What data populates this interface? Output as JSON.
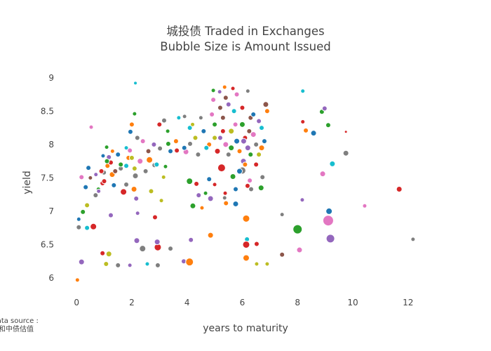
{
  "chart_data": {
    "type": "scatter",
    "title_line1": "城投债 Traded in Exchanges",
    "title_line2": "Bubble Size is Amount Issued",
    "xlabel": "years to maturity",
    "ylabel": "yield",
    "xlim": [
      -0.74,
      13.2
    ],
    "ylim": [
      5.6,
      9.25
    ],
    "xticks": [
      "0",
      "2",
      "4",
      "6",
      "8",
      "10",
      "12"
    ],
    "xtick_values": [
      0,
      2,
      4,
      6,
      8,
      10,
      12
    ],
    "yticks": [
      "6",
      "6.5",
      "7",
      "7.5",
      "8",
      "8.5",
      "9"
    ],
    "ytick_values": [
      6,
      6.5,
      7,
      7.5,
      8,
      8.5,
      9
    ],
    "grid": false,
    "source_line1": "Data source :",
    "source_line2": "数据源和中债估值",
    "colors": [
      "#1f77b4",
      "#ff7f0e",
      "#2ca02c",
      "#d62728",
      "#9467bd",
      "#8c564b",
      "#e377c2",
      "#7f7f7f",
      "#bcbd22",
      "#17becf"
    ],
    "point_fields": [
      "years_to_maturity",
      "yield",
      "bubble_size",
      "color_index"
    ],
    "points": [
      [
        0.03,
        5.97,
        5,
        1
      ],
      [
        0.18,
        6.24,
        7,
        4
      ],
      [
        0.08,
        6.76,
        6,
        7
      ],
      [
        0.08,
        6.88,
        5,
        0
      ],
      [
        0.23,
        6.99,
        6,
        2
      ],
      [
        0.38,
        7.09,
        6,
        8
      ],
      [
        0.38,
        6.75,
        6,
        9
      ],
      [
        0.61,
        6.77,
        8,
        3
      ],
      [
        0.33,
        7.36,
        6,
        0
      ],
      [
        0.18,
        7.51,
        6,
        6
      ],
      [
        0.43,
        7.65,
        6,
        0
      ],
      [
        0.69,
        7.24,
        6,
        7
      ],
      [
        0.79,
        7.33,
        5,
        2
      ],
      [
        0.94,
        7.42,
        6,
        3
      ],
      [
        0.99,
        7.58,
        6,
        7
      ],
      [
        1.12,
        7.68,
        6,
        1
      ],
      [
        1.24,
        7.73,
        6,
        3
      ],
      [
        1.29,
        7.55,
        7,
        1
      ],
      [
        1.17,
        7.81,
        6,
        4
      ],
      [
        0.96,
        7.83,
        5,
        0
      ],
      [
        1.09,
        7.96,
        5,
        2
      ],
      [
        0.53,
        8.26,
        5,
        6
      ],
      [
        1.35,
        7.39,
        6,
        0
      ],
      [
        1.24,
        6.94,
        6,
        4
      ],
      [
        0.94,
        6.37,
        6,
        3
      ],
      [
        1.17,
        6.36,
        7,
        8
      ],
      [
        1.07,
        6.21,
        6,
        8
      ],
      [
        1.5,
        6.19,
        6,
        7
      ],
      [
        1.93,
        6.19,
        5,
        4
      ],
      [
        1.7,
        7.29,
        8,
        3
      ],
      [
        1.8,
        7.4,
        6,
        7
      ],
      [
        1.6,
        7.64,
        6,
        7
      ],
      [
        1.8,
        7.68,
        6,
        9
      ],
      [
        1.88,
        7.8,
        6,
        1
      ],
      [
        1.93,
        7.91,
        6,
        6
      ],
      [
        1.95,
        8.19,
        6,
        0
      ],
      [
        2.13,
        8.92,
        4,
        9
      ],
      [
        2.1,
        8.46,
        5,
        2
      ],
      [
        2.1,
        7.64,
        6,
        8
      ],
      [
        2.13,
        7.53,
        7,
        7
      ],
      [
        2.08,
        7.33,
        7,
        1
      ],
      [
        2.16,
        7.19,
        6,
        4
      ],
      [
        2.21,
        6.97,
        5,
        4
      ],
      [
        2.18,
        6.56,
        7,
        4
      ],
      [
        2.39,
        6.44,
        8,
        7
      ],
      [
        2.56,
        6.21,
        5,
        9
      ],
      [
        2.94,
        6.19,
        6,
        7
      ],
      [
        2.94,
        6.46,
        9,
        3
      ],
      [
        2.92,
        6.54,
        7,
        4
      ],
      [
        3.4,
        6.44,
        6,
        7
      ],
      [
        2.84,
        6.91,
        6,
        3
      ],
      [
        3.07,
        7.16,
        5,
        8
      ],
      [
        3.15,
        7.51,
        5,
        8
      ],
      [
        3.22,
        7.67,
        5,
        2
      ],
      [
        2.64,
        7.77,
        8,
        1
      ],
      [
        2.82,
        7.69,
        6,
        7
      ],
      [
        3.02,
        7.94,
        6,
        7
      ],
      [
        3.32,
        8.01,
        6,
        2
      ],
      [
        3.17,
        8.36,
        6,
        7
      ],
      [
        3.63,
        7.91,
        6,
        3
      ],
      [
        3.88,
        6.25,
        6,
        4
      ],
      [
        4.09,
        6.24,
        10,
        1
      ],
      [
        4.14,
        6.57,
        6,
        4
      ],
      [
        4.21,
        7.08,
        7,
        2
      ],
      [
        4.09,
        7.45,
        8,
        2
      ],
      [
        3.96,
        7.89,
        7,
        6
      ],
      [
        4.11,
        8.01,
        6,
        7
      ],
      [
        3.91,
        8.42,
        5,
        7
      ],
      [
        4.34,
        7.41,
        6,
        3
      ],
      [
        4.42,
        7.24,
        6,
        4
      ],
      [
        4.54,
        7.05,
        5,
        1
      ],
      [
        4.67,
        7.27,
        5,
        2
      ],
      [
        4.85,
        6.64,
        7,
        1
      ],
      [
        4.85,
        7.19,
        7,
        4
      ],
      [
        4.8,
        7.48,
        6,
        0
      ],
      [
        5.0,
        7.4,
        5,
        3
      ],
      [
        4.95,
        8.67,
        6,
        6
      ],
      [
        4.95,
        8.81,
        5,
        2
      ],
      [
        5.18,
        8.79,
        5,
        4
      ],
      [
        5.36,
        8.86,
        5,
        1
      ],
      [
        5.66,
        8.84,
        5,
        3
      ],
      [
        5.25,
        7.65,
        10,
        3
      ],
      [
        5.38,
        7.27,
        5,
        3
      ],
      [
        5.36,
        7.2,
        5,
        7
      ],
      [
        5.41,
        7.12,
        6,
        1
      ],
      [
        5.76,
        7.11,
        7,
        0
      ],
      [
        5.66,
        7.52,
        7,
        2
      ],
      [
        5.76,
        7.33,
        6,
        0
      ],
      [
        6.14,
        6.89,
        9,
        1
      ],
      [
        6.17,
        6.58,
        6,
        9
      ],
      [
        6.14,
        6.5,
        9,
        3
      ],
      [
        6.14,
        6.3,
        8,
        1
      ],
      [
        6.52,
        6.51,
        6,
        3
      ],
      [
        6.52,
        6.21,
        5,
        8
      ],
      [
        6.9,
        6.21,
        5,
        8
      ],
      [
        6.19,
        7.38,
        6,
        3
      ],
      [
        6.27,
        7.46,
        6,
        6
      ],
      [
        6.32,
        7.33,
        6,
        7
      ],
      [
        6.68,
        7.35,
        7,
        2
      ],
      [
        6.73,
        7.51,
        6,
        7
      ],
      [
        6.0,
        7.61,
        9,
        7
      ],
      [
        6.04,
        7.75,
        7,
        4
      ],
      [
        7.44,
        6.95,
        5,
        7
      ],
      [
        7.44,
        6.35,
        6,
        5
      ],
      [
        8.0,
        6.73,
        12,
        2
      ],
      [
        8.07,
        6.42,
        7,
        6
      ],
      [
        8.17,
        7.17,
        5,
        4
      ],
      [
        8.19,
        8.34,
        5,
        3
      ],
      [
        8.19,
        8.8,
        5,
        9
      ],
      [
        8.3,
        8.21,
        6,
        1
      ],
      [
        8.58,
        8.17,
        7,
        0
      ],
      [
        8.88,
        8.49,
        6,
        2
      ],
      [
        9.11,
        6.86,
        14,
        6
      ],
      [
        9.14,
        7.0,
        8,
        0
      ],
      [
        9.19,
        6.59,
        11,
        4
      ],
      [
        8.91,
        7.56,
        7,
        6
      ],
      [
        9.26,
        7.71,
        7,
        9
      ],
      [
        9.75,
        7.87,
        7,
        7
      ],
      [
        9.75,
        8.19,
        3,
        3
      ],
      [
        10.43,
        7.08,
        5,
        6
      ],
      [
        11.68,
        7.33,
        7,
        3
      ],
      [
        12.18,
        6.58,
        5,
        7
      ],
      [
        9.11,
        8.29,
        6,
        2
      ],
      [
        8.98,
        8.54,
        6,
        4
      ],
      [
        4.6,
        8.2,
        6,
        0
      ],
      [
        4.8,
        8.0,
        6,
        1
      ],
      [
        5.0,
        8.3,
        6,
        2
      ],
      [
        5.1,
        7.9,
        7,
        3
      ],
      [
        5.2,
        8.1,
        6,
        4
      ],
      [
        5.3,
        8.4,
        6,
        5
      ],
      [
        5.4,
        8.0,
        7,
        6
      ],
      [
        5.5,
        7.85,
        6,
        7
      ],
      [
        5.6,
        8.2,
        7,
        8
      ],
      [
        5.7,
        8.5,
        6,
        9
      ],
      [
        5.8,
        8.05,
        7,
        0
      ],
      [
        5.9,
        7.9,
        6,
        1
      ],
      [
        6.0,
        8.3,
        7,
        2
      ],
      [
        6.1,
        8.1,
        6,
        3
      ],
      [
        6.2,
        7.95,
        7,
        4
      ],
      [
        6.3,
        8.4,
        6,
        5
      ],
      [
        6.4,
        8.15,
        7,
        6
      ],
      [
        6.5,
        8.0,
        6,
        7
      ],
      [
        6.6,
        7.85,
        6,
        8
      ],
      [
        6.7,
        8.25,
        6,
        9
      ],
      [
        6.8,
        8.05,
        6,
        0
      ],
      [
        6.9,
        8.5,
        6,
        1
      ],
      [
        6.85,
        8.6,
        7,
        5
      ],
      [
        6.0,
        8.55,
        6,
        3
      ],
      [
        5.5,
        8.6,
        6,
        4
      ],
      [
        5.2,
        8.55,
        6,
        5
      ],
      [
        4.9,
        8.45,
        6,
        6
      ],
      [
        4.5,
        8.4,
        5,
        7
      ],
      [
        4.3,
        8.1,
        6,
        8
      ],
      [
        4.1,
        8.25,
        6,
        9
      ],
      [
        3.9,
        7.95,
        6,
        0
      ],
      [
        3.6,
        8.05,
        6,
        1
      ],
      [
        3.3,
        8.2,
        5,
        2
      ],
      [
        3.0,
        8.3,
        6,
        3
      ],
      [
        2.8,
        8.0,
        6,
        4
      ],
      [
        2.6,
        7.9,
        6,
        5
      ],
      [
        2.4,
        8.05,
        6,
        6
      ],
      [
        2.2,
        8.1,
        6,
        7
      ],
      [
        2.0,
        7.8,
        6,
        8
      ],
      [
        1.8,
        7.95,
        5,
        9
      ],
      [
        1.5,
        7.85,
        6,
        0
      ],
      [
        1.3,
        7.9,
        5,
        1
      ],
      [
        1.1,
        7.75,
        6,
        2
      ],
      [
        0.9,
        7.6,
        6,
        3
      ],
      [
        0.7,
        7.55,
        5,
        4
      ],
      [
        0.5,
        7.5,
        5,
        5
      ],
      [
        2.3,
        7.75,
        7,
        6
      ],
      [
        2.5,
        7.6,
        6,
        7
      ],
      [
        2.7,
        7.3,
        6,
        8
      ],
      [
        2.9,
        7.7,
        6,
        9
      ],
      [
        5.9,
        7.6,
        7,
        0
      ],
      [
        6.1,
        7.7,
        6,
        1
      ],
      [
        6.3,
        7.85,
        6,
        2
      ],
      [
        6.5,
        7.7,
        6,
        3
      ],
      [
        6.6,
        8.35,
        6,
        4
      ],
      [
        5.4,
        8.7,
        6,
        5
      ],
      [
        5.8,
        8.75,
        6,
        6
      ],
      [
        6.2,
        8.8,
        5,
        7
      ],
      [
        5.0,
        8.1,
        6,
        8
      ],
      [
        4.7,
        7.95,
        6,
        9
      ],
      [
        6.4,
        8.45,
        6,
        0
      ],
      [
        6.7,
        7.95,
        7,
        1
      ],
      [
        5.6,
        7.95,
        7,
        2
      ],
      [
        5.3,
        8.2,
        6,
        3
      ],
      [
        6.05,
        8.05,
        7,
        4
      ],
      [
        6.25,
        8.2,
        6,
        5
      ],
      [
        5.75,
        8.3,
        6,
        6
      ],
      [
        4.4,
        7.85,
        6,
        7
      ],
      [
        4.2,
        8.3,
        5,
        8
      ],
      [
        3.7,
        8.4,
        5,
        9
      ],
      [
        3.4,
        7.9,
        6,
        0
      ],
      [
        2.0,
        8.3,
        6,
        1
      ],
      [
        1.6,
        7.7,
        6,
        2
      ],
      [
        1.0,
        7.45,
        6,
        3
      ],
      [
        0.8,
        7.3,
        5,
        4
      ],
      [
        1.4,
        7.6,
        6,
        5
      ]
    ]
  }
}
